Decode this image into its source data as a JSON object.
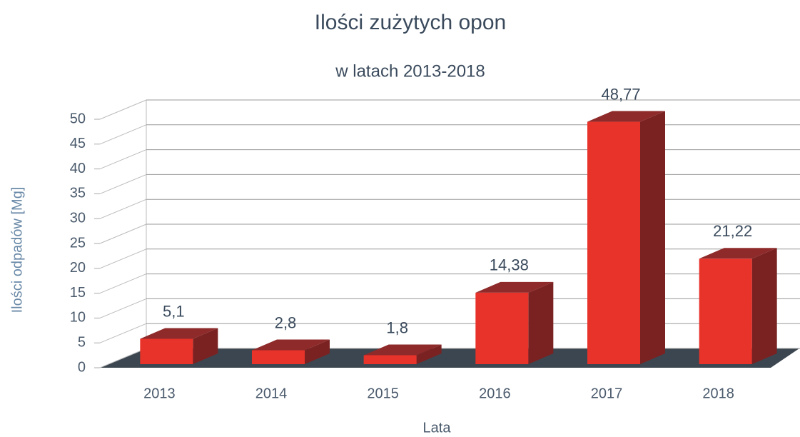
{
  "chart_data": {
    "type": "bar3d",
    "title": "Ilości zużytych opon",
    "subtitle": "w latach 2013-2018",
    "y_label": "Ilości odpadów [Mg]",
    "x_label": "Lata",
    "categories": [
      "2013",
      "2014",
      "2015",
      "2016",
      "2017",
      "2018"
    ],
    "values": [
      5.1,
      2.8,
      1.8,
      14.38,
      48.77,
      21.22
    ],
    "value_labels": [
      "5,1",
      "2,8",
      "1,8",
      "14,38",
      "48,77",
      "21,22"
    ],
    "color": "#e8332a",
    "ylim": [
      0,
      50
    ],
    "yticks": [
      0,
      5,
      10,
      15,
      20,
      25,
      30,
      35,
      40,
      45,
      50
    ],
    "grid": true
  }
}
